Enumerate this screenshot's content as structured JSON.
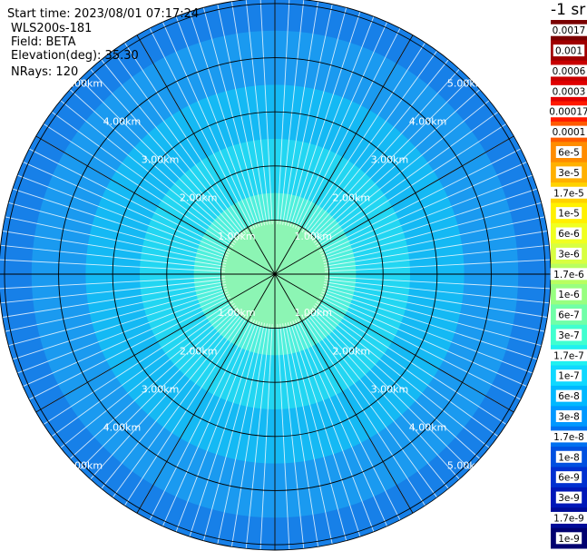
{
  "header": {
    "start_time": "Start time: 2023/08/01 07:17:24",
    "device": "WLS200s-181",
    "field": "Field: BETA",
    "elevation": "Elevation(deg): 35.30",
    "nrays": "NRays: 120"
  },
  "colorbar": {
    "unit_label": "-1 sr",
    "labels": [
      "0.0017",
      "0.001",
      "0.0006",
      "0.0003",
      "0.00017",
      "0.0001",
      "6e-5",
      "3e-5",
      "1.7e-5",
      "1e-5",
      "6e-6",
      "3e-6",
      "1.7e-6",
      "1e-6",
      "6e-7",
      "3e-7",
      "1.7e-7",
      "1e-7",
      "6e-8",
      "3e-8",
      "1.7e-8",
      "1e-8",
      "6e-9",
      "3e-9",
      "1.7e-9",
      "1e-9"
    ],
    "colors": [
      "#7a0000",
      "#a00000",
      "#c80000",
      "#e00000",
      "#ff1a00",
      "#ff5a00",
      "#ff8c00",
      "#ffb000",
      "#ffd200",
      "#fff000",
      "#f0ff20",
      "#d8ff40",
      "#b8ff60",
      "#98ff80",
      "#70ffa8",
      "#40ffd0",
      "#20f0f0",
      "#10d8ff",
      "#00b8ff",
      "#0098ff",
      "#0070f0",
      "#0050e0",
      "#0030d0",
      "#0018b8",
      "#000c98",
      "#000070"
    ]
  },
  "chart_data": {
    "type": "polar-scan",
    "nrays": 120,
    "elevation_deg": 35.3,
    "field": "BETA",
    "range_rings_km": [
      1,
      2,
      3,
      4,
      5
    ],
    "ring_labels": [
      "1.00km",
      "2.00km",
      "3.00km",
      "4.00km",
      "5.00km"
    ],
    "spokes_deg": [
      0,
      30,
      60,
      90,
      120,
      150,
      180,
      210,
      240,
      270,
      300,
      330
    ],
    "max_range_km": 5.1,
    "typical_values_by_range_km": [
      {
        "range_km": 0.5,
        "beta": 3e-07
      },
      {
        "range_km": 1.0,
        "beta": 1.7e-07
      },
      {
        "range_km": 2.0,
        "beta": 1e-07
      },
      {
        "range_km": 3.0,
        "beta": 6e-08
      },
      {
        "range_km": 4.0,
        "beta": 3e-08
      },
      {
        "range_km": 5.0,
        "beta": 1.7e-08
      }
    ]
  }
}
